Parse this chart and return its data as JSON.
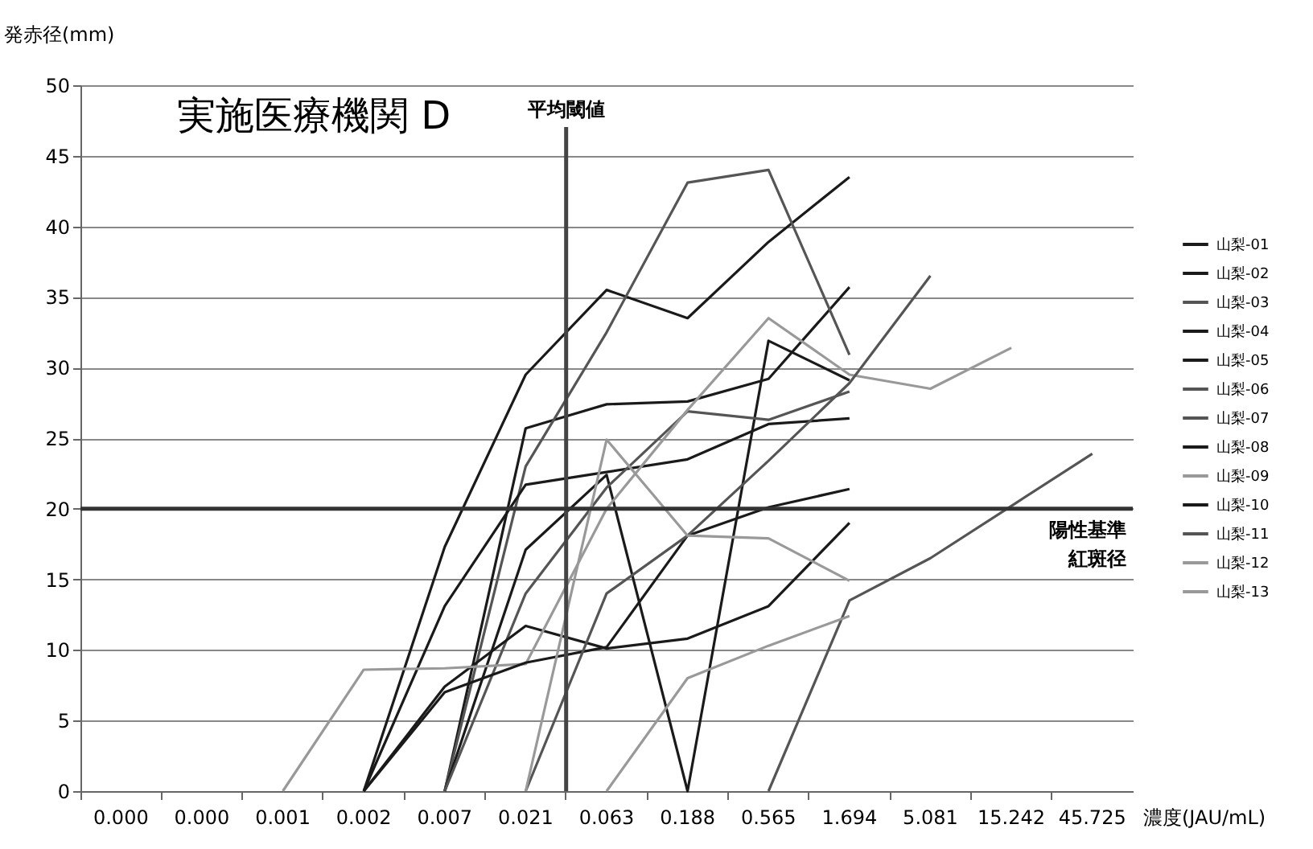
{
  "chart_data": {
    "type": "line",
    "title": "実施医療機関 D",
    "xlabel": "濃度(JAU/mL)",
    "ylabel": "発赤径(mm)",
    "categories": [
      "0.000",
      "0.000",
      "0.001",
      "0.002",
      "0.007",
      "0.021",
      "0.063",
      "0.188",
      "0.565",
      "1.694",
      "5.081",
      "15.242",
      "45.725"
    ],
    "ylim": [
      0,
      50
    ],
    "yticks": [
      0,
      5,
      10,
      15,
      20,
      25,
      30,
      35,
      40,
      45,
      50
    ],
    "grid": "y",
    "legend": "right",
    "line_style": "solid",
    "marker": "none",
    "ref_lines": [
      {
        "axis": "x",
        "value": "0.063",
        "label": "平均閾値",
        "color": "#444444"
      },
      {
        "axis": "y",
        "value": 20,
        "label": "陽性基準紅斑径",
        "color": "#333333"
      }
    ],
    "series": [
      {
        "name": "山梨-01",
        "color": "#1a1a1a",
        "values": [
          null,
          null,
          null,
          0,
          17.3,
          29.5,
          35.5,
          33.5,
          38.9,
          43.5,
          null,
          null,
          null
        ]
      },
      {
        "name": "山梨-02",
        "color": "#1a1a1a",
        "values": [
          null,
          null,
          null,
          null,
          0,
          25.7,
          27.4,
          27.6,
          29.2,
          35.7,
          null,
          null,
          null
        ]
      },
      {
        "name": "山梨-03",
        "color": "#555555",
        "values": [
          null,
          null,
          null,
          null,
          0,
          23.0,
          32.5,
          43.1,
          44.0,
          30.9,
          null,
          null,
          null
        ]
      },
      {
        "name": "山梨-04",
        "color": "#1a1a1a",
        "values": [
          null,
          null,
          null,
          0,
          13.1,
          21.7,
          22.6,
          23.5,
          26.0,
          26.4,
          null,
          null,
          null
        ]
      },
      {
        "name": "山梨-05",
        "color": "#1a1a1a",
        "values": [
          null,
          null,
          null,
          null,
          0,
          17.1,
          22.4,
          0,
          31.9,
          29.1,
          null,
          null,
          null
        ]
      },
      {
        "name": "山梨-06",
        "color": "#555555",
        "values": [
          null,
          null,
          null,
          null,
          0,
          14.0,
          21.5,
          26.9,
          26.3,
          28.3,
          null,
          null,
          null
        ]
      },
      {
        "name": "山梨-07",
        "color": "#555555",
        "values": [
          null,
          null,
          null,
          null,
          null,
          null,
          null,
          null,
          0,
          13.5,
          16.5,
          20.2,
          23.9
        ]
      },
      {
        "name": "山梨-08",
        "color": "#1a1a1a",
        "values": [
          null,
          null,
          null,
          0,
          7.4,
          11.7,
          10.1,
          10.8,
          13.1,
          19.0,
          null,
          null,
          null
        ]
      },
      {
        "name": "山梨-09",
        "color": "#999999",
        "values": [
          null,
          null,
          0,
          8.6,
          8.7,
          9.0,
          20.0,
          27.0,
          33.5,
          29.5,
          28.5,
          31.4,
          null
        ]
      },
      {
        "name": "山梨-10",
        "color": "#1a1a1a",
        "values": [
          null,
          null,
          null,
          0,
          7.0,
          9.1,
          10.2,
          18.1,
          20.1,
          21.4,
          null,
          null,
          null
        ]
      },
      {
        "name": "山梨-11",
        "color": "#555555",
        "values": [
          null,
          null,
          null,
          null,
          null,
          0,
          14.0,
          18.1,
          23.4,
          28.9,
          36.5,
          null,
          null
        ]
      },
      {
        "name": "山梨-12",
        "color": "#999999",
        "values": [
          null,
          null,
          null,
          null,
          null,
          0,
          24.9,
          18.1,
          17.9,
          14.9,
          null,
          null,
          null
        ]
      },
      {
        "name": "山梨-13",
        "color": "#999999",
        "values": [
          null,
          null,
          null,
          null,
          null,
          null,
          0,
          8.0,
          10.3,
          12.4,
          null,
          null,
          null
        ]
      }
    ]
  }
}
